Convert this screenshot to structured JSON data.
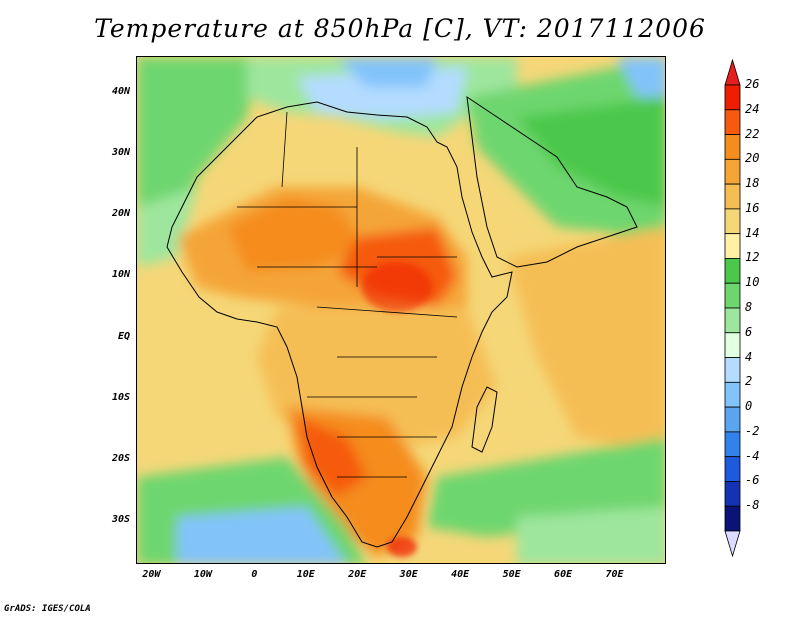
{
  "title": "Temperature at 850hPa [C], VT: 2017112006",
  "credit": "GrADS: IGES/COLA",
  "map": {
    "region": "Africa and Arabian Peninsula",
    "variable": "Temperature at 850hPa",
    "units": "C",
    "valid_time": "2017112006",
    "lon_range": [
      -23,
      80
    ],
    "lat_range": [
      -37,
      46
    ],
    "lat_ticks": [
      {
        "value": 40,
        "label": "40N"
      },
      {
        "value": 30,
        "label": "30N"
      },
      {
        "value": 20,
        "label": "20N"
      },
      {
        "value": 10,
        "label": "10N"
      },
      {
        "value": 0,
        "label": "EQ"
      },
      {
        "value": -10,
        "label": "10S"
      },
      {
        "value": -20,
        "label": "20S"
      },
      {
        "value": -30,
        "label": "30S"
      }
    ],
    "lon_ticks": [
      {
        "value": -20,
        "label": "20W"
      },
      {
        "value": -10,
        "label": "10W"
      },
      {
        "value": 0,
        "label": "0"
      },
      {
        "value": 10,
        "label": "10E"
      },
      {
        "value": 20,
        "label": "20E"
      },
      {
        "value": 30,
        "label": "30E"
      },
      {
        "value": 40,
        "label": "40E"
      },
      {
        "value": 50,
        "label": "50E"
      },
      {
        "value": 60,
        "label": "60E"
      },
      {
        "value": 70,
        "label": "70E"
      }
    ]
  },
  "colorbar": {
    "labels": [
      "26",
      "24",
      "22",
      "20",
      "18",
      "16",
      "14",
      "12",
      "10",
      "8",
      "6",
      "4",
      "2",
      "0",
      "-2",
      "-4",
      "-6",
      "-8"
    ],
    "colors": [
      "#f01e00",
      "#f55a0f",
      "#f58c1e",
      "#f5a537",
      "#f5be55",
      "#f5d778",
      "#fff0a5",
      "#4bc84b",
      "#6ed66e",
      "#9ee69e",
      "#e1ffe1",
      "#b4dcff",
      "#82c3fa",
      "#5aa5f0",
      "#3282eb",
      "#1e5adc",
      "#1432b4",
      "#0a1478"
    ],
    "top_arrow_color": "#e61e1e",
    "bottom_arrow_color": "#dcdcff"
  }
}
